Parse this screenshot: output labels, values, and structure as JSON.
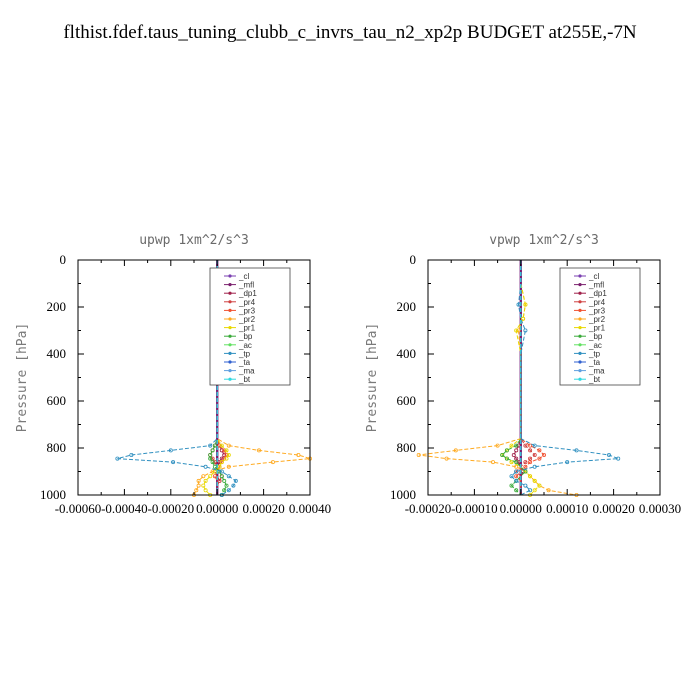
{
  "title": "flthist.fdef.taus_tuning_clubb_c_invrs_tau_n2_xp2p  BUDGET at255E,-7N",
  "chart_data": [
    {
      "type": "line",
      "title": "upwp   1xm^2/s^3",
      "ylabel": "Pressure [hPa]",
      "xlim": [
        -0.0006,
        0.0004
      ],
      "ylim": [
        1000,
        0
      ],
      "y_inverted": true,
      "grid": false,
      "legend_position": "top-right",
      "xticks": [
        -0.0006,
        -0.0004,
        -0.0002,
        0.0,
        0.0002,
        0.0004
      ],
      "xtick_labels": [
        "-0.00060",
        "-0.00040",
        "-0.00020",
        "0.00000",
        "0.00020",
        "0.00040"
      ],
      "yticks": [
        0,
        200,
        400,
        600,
        800,
        1000
      ],
      "ytick_labels": [
        "0",
        "200",
        "400",
        "600",
        "800",
        "1000"
      ],
      "pressure": [
        0,
        100,
        190,
        250,
        400,
        600,
        760,
        790,
        810,
        830,
        845,
        860,
        880,
        900,
        920,
        940,
        960,
        980,
        1000
      ],
      "series": [
        {
          "name": "_cl",
          "color": "#7a3fb0",
          "values": [
            0,
            0,
            0,
            0,
            0,
            0,
            0,
            0,
            0,
            0,
            0,
            0,
            0,
            0,
            0,
            0,
            0,
            0,
            0
          ]
        },
        {
          "name": "_mfl",
          "color": "#7a1f6e",
          "values": [
            0,
            0,
            0,
            0,
            0,
            0,
            0,
            0,
            0,
            0,
            0,
            0,
            0,
            0,
            0,
            0,
            0,
            0,
            0
          ]
        },
        {
          "name": "_dp1",
          "color": "#a0204a",
          "values": [
            0,
            0,
            0,
            0,
            0,
            0,
            0,
            1e-05,
            2e-05,
            3e-05,
            2e-05,
            1e-05,
            0,
            -1e-05,
            0,
            1e-05,
            0,
            0,
            0
          ]
        },
        {
          "name": "_pr4",
          "color": "#d04040",
          "values": [
            0,
            0,
            0,
            0,
            0,
            0,
            0,
            -1e-05,
            -2e-05,
            -3e-05,
            -2e-05,
            -1e-05,
            0,
            1e-05,
            2e-05,
            1e-05,
            0,
            0,
            0
          ]
        },
        {
          "name": "_pr3",
          "color": "#f05030",
          "values": [
            0,
            0,
            0,
            0,
            0,
            0,
            0,
            1e-05,
            3e-05,
            4e-05,
            3e-05,
            2e-05,
            1e-05,
            0,
            -1e-05,
            0,
            0,
            0,
            0
          ]
        },
        {
          "name": "_pr2",
          "color": "#ffaa20",
          "values": [
            0,
            0,
            0,
            0,
            0,
            0,
            0,
            5e-05,
            0.00018,
            0.00035,
            0.0004,
            0.00024,
            5e-05,
            -2e-05,
            -6e-05,
            -8e-05,
            -8e-05,
            -9e-05,
            -0.0001
          ]
        },
        {
          "name": "_pr1",
          "color": "#e8d800",
          "values": [
            0,
            0,
            -5e-06,
            0,
            0,
            0,
            0,
            2e-05,
            4e-05,
            5e-05,
            4e-05,
            2e-05,
            1e-05,
            -1e-05,
            -3e-05,
            -5e-05,
            -6e-05,
            -5e-05,
            -3e-05
          ]
        },
        {
          "name": "_bp",
          "color": "#3aaa3a",
          "values": [
            0,
            0,
            0,
            0,
            0,
            0,
            0,
            -1e-05,
            -2e-05,
            -3e-05,
            -3e-05,
            -2e-05,
            -1e-05,
            1e-05,
            2e-05,
            3e-05,
            4e-05,
            3e-05,
            2e-05
          ]
        },
        {
          "name": "_ac",
          "color": "#60e060",
          "values": [
            0,
            0,
            0,
            0,
            0,
            0,
            0,
            0,
            0,
            0,
            0,
            0,
            0,
            0,
            0,
            0,
            0,
            0,
            0
          ]
        },
        {
          "name": "_tp",
          "color": "#3090c0",
          "values": [
            0,
            0,
            5e-06,
            0,
            0,
            0,
            0,
            -3e-05,
            -0.0002,
            -0.00037,
            -0.00043,
            -0.00019,
            -5e-05,
            2e-05,
            5e-05,
            8e-05,
            7e-05,
            5e-05,
            2e-05
          ]
        },
        {
          "name": "_ta",
          "color": "#3060d0",
          "values": [
            0,
            0,
            0,
            0,
            0,
            0,
            0,
            0,
            0,
            0,
            0,
            0,
            0,
            0,
            0,
            0,
            0,
            0,
            0
          ]
        },
        {
          "name": "_ma",
          "color": "#60a0e0",
          "values": [
            0,
            0,
            0,
            0,
            0,
            0,
            0,
            0,
            0,
            0,
            0,
            0,
            0,
            0,
            0,
            0,
            0,
            0,
            0
          ]
        },
        {
          "name": "_bt",
          "color": "#30d8e0",
          "values": [
            0,
            0,
            0,
            0,
            0,
            0,
            0,
            0,
            0,
            0,
            0,
            0,
            0,
            0,
            0,
            0,
            0,
            0,
            0
          ]
        }
      ]
    },
    {
      "type": "line",
      "title": "vpwp   1xm^2/s^3",
      "ylabel": "Pressure [hPa]",
      "xlim": [
        -0.0002,
        0.0003
      ],
      "ylim": [
        1000,
        0
      ],
      "y_inverted": true,
      "grid": false,
      "legend_position": "top-right",
      "xticks": [
        -0.0002,
        -0.0001,
        0.0,
        0.0001,
        0.0002,
        0.0003
      ],
      "xtick_labels": [
        "-0.00020",
        "-0.00010",
        "0.00000",
        "0.00010",
        "0.00020",
        "0.00030"
      ],
      "yticks": [
        0,
        200,
        400,
        600,
        800,
        1000
      ],
      "ytick_labels": [
        "0",
        "200",
        "400",
        "600",
        "800",
        "1000"
      ],
      "pressure": [
        0,
        100,
        190,
        250,
        300,
        400,
        600,
        760,
        790,
        810,
        830,
        845,
        860,
        880,
        900,
        920,
        940,
        960,
        980,
        1000
      ],
      "series": [
        {
          "name": "_cl",
          "color": "#7a3fb0",
          "values": [
            0,
            0,
            0,
            0,
            0,
            0,
            0,
            0,
            0,
            0,
            0,
            0,
            0,
            0,
            0,
            0,
            0,
            0,
            0,
            0
          ]
        },
        {
          "name": "_mfl",
          "color": "#7a1f6e",
          "values": [
            0,
            0,
            0,
            0,
            0,
            0,
            0,
            0,
            0,
            0,
            0,
            0,
            0,
            0,
            0,
            0,
            0,
            0,
            0,
            0
          ]
        },
        {
          "name": "_dp1",
          "color": "#a0204a",
          "values": [
            0,
            0,
            0,
            0,
            0,
            0,
            0,
            0,
            -5e-06,
            -1e-05,
            -1.5e-05,
            -1e-05,
            -5e-06,
            0,
            5e-06,
            0,
            0,
            0,
            0,
            0
          ]
        },
        {
          "name": "_pr4",
          "color": "#d04040",
          "values": [
            0,
            0,
            0,
            0,
            0,
            0,
            0,
            0,
            1e-05,
            2e-05,
            3e-05,
            2e-05,
            1e-05,
            0,
            -1e-05,
            0,
            0,
            0,
            0,
            0
          ]
        },
        {
          "name": "_pr3",
          "color": "#f05030",
          "values": [
            0,
            0,
            0,
            0,
            0,
            0,
            0,
            0,
            2e-05,
            4e-05,
            5e-05,
            4e-05,
            2e-05,
            1e-05,
            0,
            -1e-05,
            0,
            0,
            0,
            0
          ]
        },
        {
          "name": "_pr2",
          "color": "#ffaa20",
          "values": [
            0,
            0,
            1e-05,
            5e-06,
            -5e-06,
            0,
            0,
            0,
            -5e-05,
            -0.00014,
            -0.00022,
            -0.00016,
            -6e-05,
            -1e-05,
            1e-05,
            2e-05,
            3e-05,
            4e-05,
            6e-05,
            0.00012
          ]
        },
        {
          "name": "_pr1",
          "color": "#e8d800",
          "values": [
            0,
            0,
            1e-05,
            5e-06,
            -1e-05,
            0,
            0,
            0,
            -2e-05,
            -3e-05,
            -4e-05,
            -3e-05,
            -2e-05,
            0,
            1e-05,
            2e-05,
            3e-05,
            4e-05,
            3e-05,
            2e-05
          ]
        },
        {
          "name": "_bp",
          "color": "#3aaa3a",
          "values": [
            0,
            0,
            0,
            0,
            0,
            0,
            0,
            0,
            -1e-05,
            -3e-05,
            -4e-05,
            -3e-05,
            -1e-05,
            0,
            1e-05,
            0,
            -1e-05,
            -2e-05,
            -1e-05,
            0
          ]
        },
        {
          "name": "_ac",
          "color": "#60e060",
          "values": [
            0,
            0,
            0,
            0,
            0,
            0,
            0,
            0,
            0,
            0,
            0,
            0,
            0,
            0,
            0,
            0,
            0,
            0,
            0,
            0
          ]
        },
        {
          "name": "_tp",
          "color": "#3090c0",
          "values": [
            0,
            0,
            -5e-06,
            0,
            1e-05,
            0,
            0,
            0,
            3e-05,
            0.00012,
            0.00019,
            0.00021,
            0.0001,
            3e-05,
            -1e-05,
            -2e-05,
            -1e-05,
            1e-05,
            2e-05,
            0
          ]
        },
        {
          "name": "_ta",
          "color": "#3060d0",
          "values": [
            0,
            0,
            0,
            0,
            0,
            0,
            0,
            0,
            0,
            0,
            0,
            0,
            0,
            0,
            0,
            0,
            0,
            0,
            0,
            0
          ]
        },
        {
          "name": "_ma",
          "color": "#60a0e0",
          "values": [
            0,
            0,
            0,
            0,
            0,
            0,
            0,
            0,
            0,
            0,
            0,
            0,
            0,
            0,
            0,
            0,
            0,
            0,
            0,
            0
          ]
        },
        {
          "name": "_bt",
          "color": "#30d8e0",
          "values": [
            0,
            0,
            0,
            0,
            0,
            0,
            0,
            0,
            0,
            0,
            0,
            0,
            0,
            0,
            0,
            0,
            0,
            0,
            0,
            0
          ]
        }
      ]
    }
  ]
}
